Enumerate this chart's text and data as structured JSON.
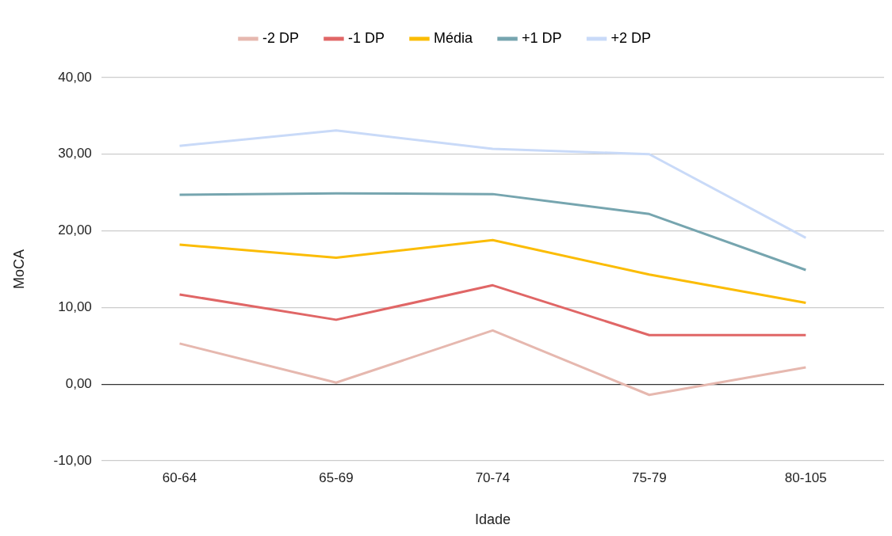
{
  "chart_data": {
    "type": "line",
    "xlabel": "Idade",
    "ylabel": "MoCA",
    "categories": [
      "60-64",
      "65-69",
      "70-74",
      "75-79",
      "80-105"
    ],
    "series": [
      {
        "name": "-2 DP",
        "color": "#e6b8af",
        "values": [
          5.3,
          0.2,
          7.0,
          -1.4,
          2.2
        ]
      },
      {
        "name": "-1 DP",
        "color": "#e06666",
        "values": [
          11.7,
          8.4,
          12.9,
          6.4,
          6.4
        ]
      },
      {
        "name": "Média",
        "color": "#fbbc04",
        "values": [
          18.2,
          16.5,
          18.8,
          14.3,
          10.6
        ]
      },
      {
        "name": "+1 DP",
        "color": "#76a5af",
        "values": [
          24.7,
          24.9,
          24.8,
          22.2,
          14.9
        ]
      },
      {
        "name": "+2 DP",
        "color": "#c9daf8",
        "values": [
          31.1,
          33.1,
          30.7,
          30.0,
          19.1
        ]
      }
    ],
    "ylim": [
      -10,
      40
    ],
    "yticks": [
      {
        "value": -10,
        "label": "-10,00"
      },
      {
        "value": 0,
        "label": "0,00"
      },
      {
        "value": 10,
        "label": "10,00"
      },
      {
        "value": 20,
        "label": "20,00"
      },
      {
        "value": 30,
        "label": "30,00"
      },
      {
        "value": 40,
        "label": "40,00"
      }
    ],
    "grid": "y",
    "legend": "top",
    "marker": "none"
  }
}
